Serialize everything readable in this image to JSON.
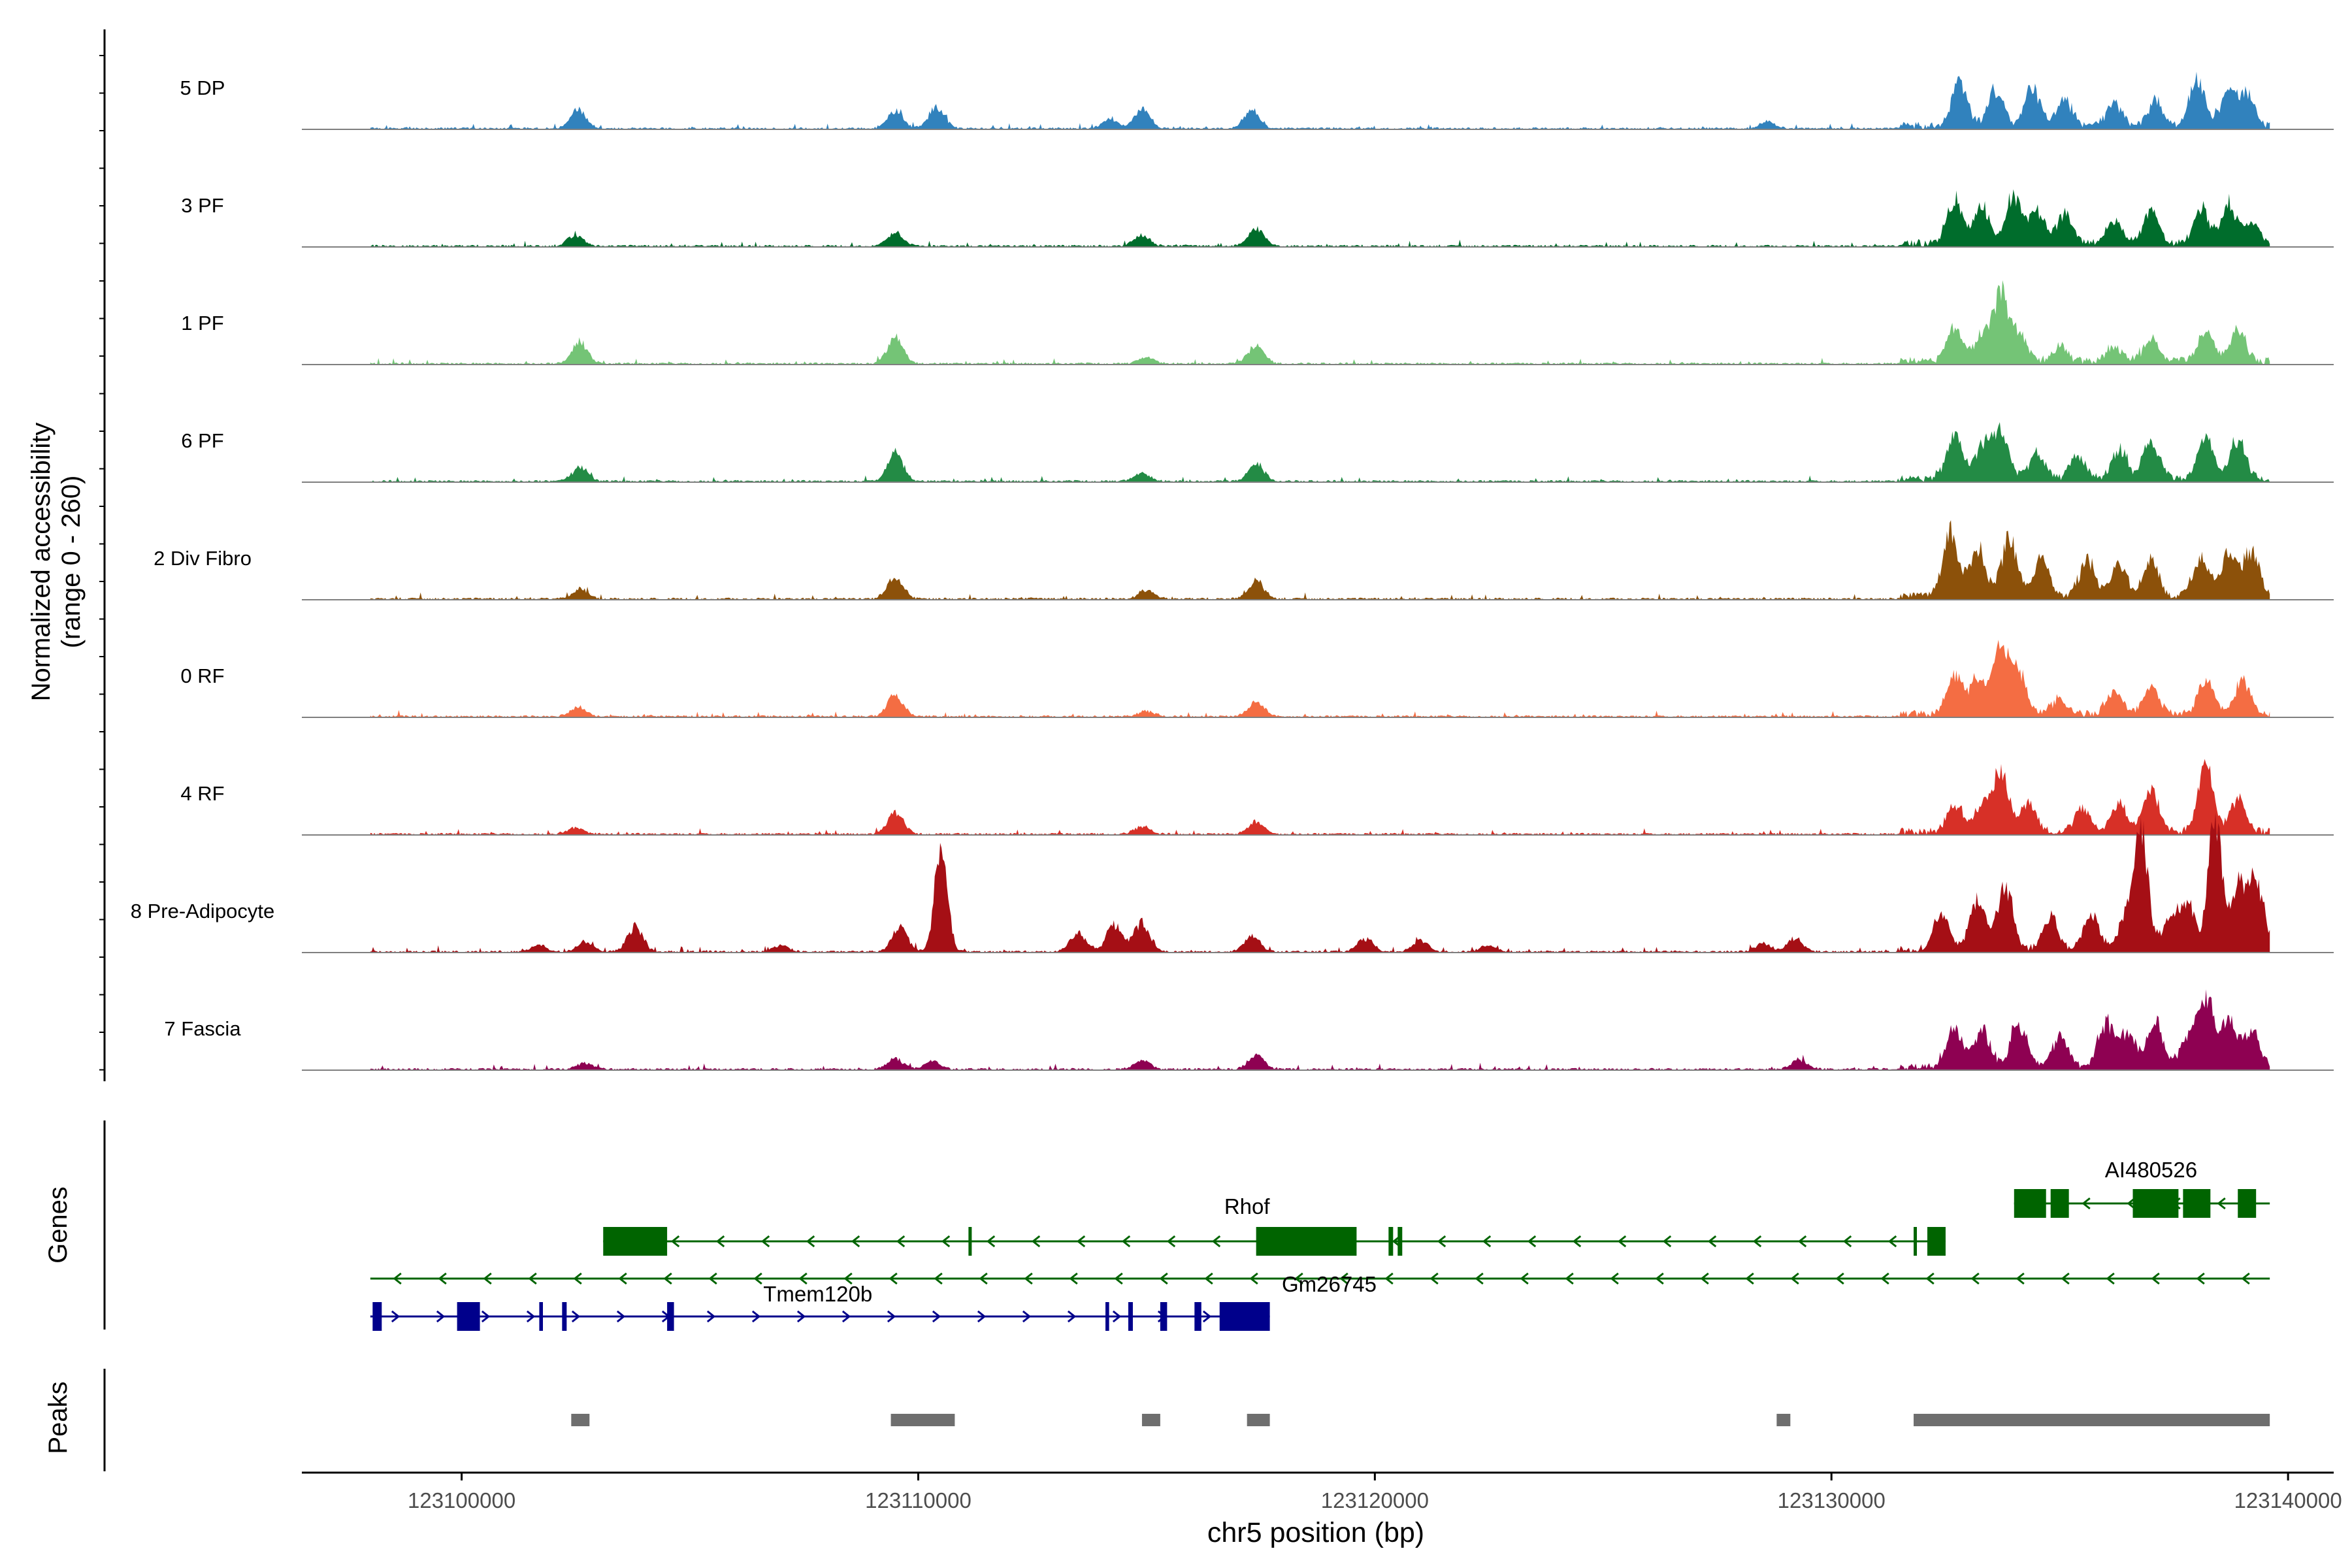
{
  "chart_data": {
    "type": "area",
    "title": "",
    "xlabel": "chr5 position (bp)",
    "ylabel_line1": "Normalized accessibility",
    "ylabel_line2": "(range 0 - 260)",
    "ylim": [
      0,
      260
    ],
    "xlim": [
      123096500,
      123141000
    ],
    "xticks": [
      123100000,
      123110000,
      123120000,
      123130000,
      123140000
    ],
    "xtick_labels": [
      "123100000",
      "123110000",
      "123120000",
      "123130000",
      "123140000"
    ],
    "data_range": [
      123098000,
      123139600
    ],
    "tracks": [
      {
        "name": "5 DP",
        "color": "#3182BD",
        "peaks": [
          [
            123102550,
            35
          ],
          [
            123109500,
            33
          ],
          [
            123110400,
            40
          ],
          [
            123114200,
            17
          ],
          [
            123114900,
            35
          ],
          [
            123117300,
            33
          ],
          [
            123128600,
            12
          ],
          [
            123132800,
            80
          ],
          [
            123133600,
            68
          ],
          [
            123134400,
            72
          ],
          [
            123135100,
            48
          ],
          [
            123136200,
            42
          ],
          [
            123137100,
            48
          ],
          [
            123138000,
            85
          ],
          [
            123138700,
            62
          ],
          [
            123139100,
            58
          ]
        ]
      },
      {
        "name": "3 PF",
        "color": "#006D2C",
        "peaks": [
          [
            123102500,
            20
          ],
          [
            123109500,
            25
          ],
          [
            123114900,
            20
          ],
          [
            123117400,
            33
          ],
          [
            123132700,
            80
          ],
          [
            123133300,
            65
          ],
          [
            123134000,
            85
          ],
          [
            123134500,
            58
          ],
          [
            123135100,
            50
          ],
          [
            123136200,
            42
          ],
          [
            123137000,
            62
          ],
          [
            123138100,
            62
          ],
          [
            123138700,
            72
          ],
          [
            123139200,
            40
          ]
        ]
      },
      {
        "name": "1 PF",
        "color": "#74C476",
        "peaks": [
          [
            123102600,
            40
          ],
          [
            123109500,
            48
          ],
          [
            123115000,
            12
          ],
          [
            123117400,
            35
          ],
          [
            123132700,
            60
          ],
          [
            123133300,
            45
          ],
          [
            123133700,
            120
          ],
          [
            123134100,
            48
          ],
          [
            123135000,
            26
          ],
          [
            123136200,
            28
          ],
          [
            123137000,
            40
          ],
          [
            123138200,
            55
          ],
          [
            123138900,
            60
          ]
        ]
      },
      {
        "name": "6 PF",
        "color": "#238B45",
        "peaks": [
          [
            123102600,
            28
          ],
          [
            123109500,
            52
          ],
          [
            123114900,
            15
          ],
          [
            123117400,
            33
          ],
          [
            123132700,
            80
          ],
          [
            123133300,
            55
          ],
          [
            123133700,
            90
          ],
          [
            123134500,
            50
          ],
          [
            123135400,
            45
          ],
          [
            123136300,
            52
          ],
          [
            123137000,
            72
          ],
          [
            123138200,
            80
          ],
          [
            123138900,
            75
          ]
        ]
      },
      {
        "name": "2 Div Fibro",
        "color": "#8C510A",
        "peaks": [
          [
            123102600,
            18
          ],
          [
            123109500,
            40
          ],
          [
            123115000,
            16
          ],
          [
            123117400,
            33
          ],
          [
            123132600,
            115
          ],
          [
            123133200,
            90
          ],
          [
            123133900,
            110
          ],
          [
            123134600,
            70
          ],
          [
            123135600,
            68
          ],
          [
            123136300,
            58
          ],
          [
            123137000,
            65
          ],
          [
            123138100,
            70
          ],
          [
            123138700,
            78
          ],
          [
            123139200,
            82
          ]
        ]
      },
      {
        "name": "0 RF",
        "color": "#F46D43",
        "peaks": [
          [
            123102550,
            18
          ],
          [
            123109500,
            40
          ],
          [
            123115000,
            10
          ],
          [
            123117400,
            27
          ],
          [
            123132700,
            75
          ],
          [
            123133200,
            60
          ],
          [
            123133700,
            130
          ],
          [
            123134100,
            75
          ],
          [
            123135000,
            30
          ],
          [
            123136200,
            42
          ],
          [
            123137000,
            50
          ],
          [
            123138200,
            60
          ],
          [
            123139000,
            62
          ]
        ]
      },
      {
        "name": "4 RF",
        "color": "#D73027",
        "peaks": [
          [
            123102500,
            12
          ],
          [
            123109500,
            42
          ],
          [
            123114900,
            14
          ],
          [
            123117400,
            22
          ],
          [
            123132700,
            50
          ],
          [
            123133300,
            48
          ],
          [
            123133700,
            110
          ],
          [
            123134300,
            52
          ],
          [
            123135500,
            45
          ],
          [
            123136300,
            52
          ],
          [
            123137000,
            75
          ],
          [
            123138200,
            115
          ],
          [
            123138900,
            60
          ]
        ]
      },
      {
        "name": "8 Pre-Adipocyte",
        "color": "#A50F15",
        "peaks": [
          [
            123101700,
            12
          ],
          [
            123102700,
            18
          ],
          [
            123103800,
            45
          ],
          [
            123107000,
            12
          ],
          [
            123109600,
            45
          ],
          [
            123110500,
            195
          ],
          [
            123113500,
            35
          ],
          [
            123114300,
            50
          ],
          [
            123114900,
            55
          ],
          [
            123117300,
            30
          ],
          [
            123119800,
            25
          ],
          [
            123121000,
            20
          ],
          [
            123122500,
            12
          ],
          [
            123128500,
            15
          ],
          [
            123129200,
            25
          ],
          [
            123132400,
            70
          ],
          [
            123133200,
            88
          ],
          [
            123133800,
            115
          ],
          [
            123134800,
            60
          ],
          [
            123135700,
            60
          ],
          [
            123136500,
            82
          ],
          [
            123136800,
            200
          ],
          [
            123137400,
            55
          ],
          [
            123137800,
            88
          ],
          [
            123138400,
            245
          ],
          [
            123138900,
            110
          ],
          [
            123139300,
            130
          ]
        ]
      },
      {
        "name": "7 Fascia",
        "color": "#8E0152",
        "peaks": [
          [
            123102700,
            12
          ],
          [
            123109500,
            20
          ],
          [
            123110300,
            15
          ],
          [
            123114900,
            18
          ],
          [
            123117400,
            27
          ],
          [
            123129300,
            18
          ],
          [
            123132700,
            75
          ],
          [
            123133300,
            65
          ],
          [
            123134100,
            80
          ],
          [
            123135000,
            55
          ],
          [
            123136000,
            82
          ],
          [
            123136500,
            65
          ],
          [
            123137100,
            80
          ],
          [
            123137800,
            50
          ],
          [
            123138200,
            132
          ],
          [
            123138700,
            90
          ],
          [
            123139200,
            70
          ]
        ]
      }
    ],
    "genes": {
      "label": "Genes",
      "rows": [
        {
          "color": "#006400",
          "direction": "-",
          "start": 123134000,
          "end": 123139600,
          "label": "AI480526",
          "label_pos": 123137000,
          "exons": [
            [
              123134000,
              123134700
            ],
            [
              123134800,
              123135200
            ],
            [
              123136600,
              123137600
            ],
            [
              123137700,
              123138300
            ],
            [
              123138900,
              123139300
            ]
          ]
        },
        {
          "color": "#006400",
          "direction": "-",
          "start": 123103100,
          "end": 123132500,
          "label": "Rhof",
          "label_pos": 123117200,
          "exons": [
            [
              123103100,
              123104500
            ],
            [
              123111100,
              123111150
            ],
            [
              123117400,
              123119600
            ],
            [
              123120300,
              123120400
            ],
            [
              123120500,
              123120600
            ],
            [
              123131800,
              123131850
            ],
            [
              123132100,
              123132500
            ]
          ]
        },
        {
          "color": "#006400",
          "direction": "-",
          "start": 123098000,
          "end": 123139600,
          "label": "Gm26745",
          "label_pos": 123119000,
          "exons": []
        },
        {
          "color": "#00008B",
          "direction": "+",
          "start": 123098000,
          "end": 123117700,
          "label": "Tmem120b",
          "label_pos": 123107800,
          "exons": [
            [
              123098050,
              123098250
            ],
            [
              123099900,
              123100400
            ],
            [
              123101700,
              123101780
            ],
            [
              123102200,
              123102300
            ],
            [
              123104500,
              123104650
            ],
            [
              123114100,
              123114180
            ],
            [
              123114600,
              123114700
            ],
            [
              123115300,
              123115450
            ],
            [
              123116050,
              123116200
            ],
            [
              123116600,
              123117700
            ]
          ]
        }
      ]
    },
    "peaks_track": {
      "label": "Peaks",
      "color": "#6E6E6E",
      "regions": [
        [
          123102400,
          123102800
        ],
        [
          123109400,
          123110800
        ],
        [
          123114900,
          123115300
        ],
        [
          123117200,
          123117700
        ],
        [
          123128800,
          123129100
        ],
        [
          123131800,
          123139600
        ]
      ]
    }
  }
}
